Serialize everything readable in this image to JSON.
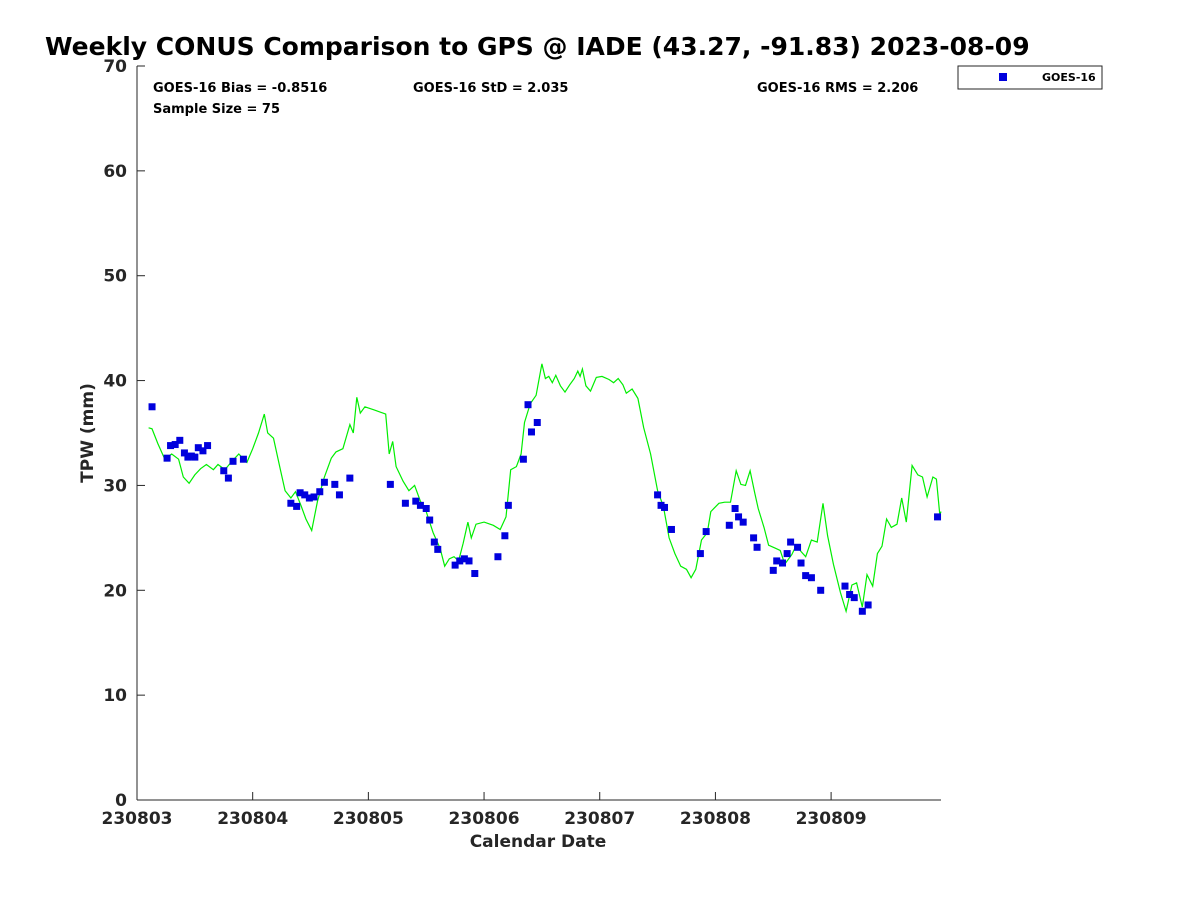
{
  "chart_data": {
    "type": "scatter",
    "title": "Weekly CONUS Comparison to GPS @ IADE (43.27, -91.83) 2023-08-09",
    "xlabel": "Calendar Date",
    "ylabel": "TPW (mm)",
    "xlim": [
      230803.0,
      230809.95
    ],
    "ylim": [
      0,
      70
    ],
    "yticks": [
      0,
      10,
      20,
      30,
      40,
      50,
      60,
      70
    ],
    "xticks": [
      {
        "value": 230803,
        "label": "230803"
      },
      {
        "value": 230804,
        "label": "230804"
      },
      {
        "value": 230805,
        "label": "230805"
      },
      {
        "value": 230806,
        "label": "230806"
      },
      {
        "value": 230807,
        "label": "230807"
      },
      {
        "value": 230808,
        "label": "230808"
      },
      {
        "value": 230809,
        "label": "230809"
      }
    ],
    "grid": false,
    "legend_position": "top-right outside",
    "stats": {
      "bias": "GOES-16 Bias = -0.8516",
      "std": "GOES-16 StD = 2.035",
      "rms": "GOES-16 RMS = 2.206",
      "sample": "Sample Size = 75"
    },
    "series": [
      {
        "name": "GOES-16",
        "kind": "scatter",
        "marker": "square",
        "color": "#0000dd",
        "points": [
          [
            230803.13,
            37.5
          ],
          [
            230803.26,
            32.6
          ],
          [
            230803.29,
            33.8
          ],
          [
            230803.33,
            33.9
          ],
          [
            230803.37,
            34.3
          ],
          [
            230803.41,
            33.1
          ],
          [
            230803.44,
            32.7
          ],
          [
            230803.47,
            32.8
          ],
          [
            230803.5,
            32.7
          ],
          [
            230803.53,
            33.6
          ],
          [
            230803.57,
            33.3
          ],
          [
            230803.61,
            33.8
          ],
          [
            230803.75,
            31.4
          ],
          [
            230803.79,
            30.7
          ],
          [
            230803.83,
            32.3
          ],
          [
            230803.92,
            32.5
          ],
          [
            230804.33,
            28.3
          ],
          [
            230804.38,
            28.0
          ],
          [
            230804.41,
            29.3
          ],
          [
            230804.45,
            29.1
          ],
          [
            230804.49,
            28.8
          ],
          [
            230804.53,
            28.9
          ],
          [
            230804.58,
            29.4
          ],
          [
            230804.62,
            30.3
          ],
          [
            230804.71,
            30.1
          ],
          [
            230804.75,
            29.1
          ],
          [
            230804.84,
            30.7
          ],
          [
            230805.19,
            30.1
          ],
          [
            230805.32,
            28.3
          ],
          [
            230805.41,
            28.5
          ],
          [
            230805.45,
            28.1
          ],
          [
            230805.5,
            27.8
          ],
          [
            230805.53,
            26.7
          ],
          [
            230805.57,
            24.6
          ],
          [
            230805.6,
            23.9
          ],
          [
            230805.75,
            22.4
          ],
          [
            230805.79,
            22.8
          ],
          [
            230805.83,
            23.0
          ],
          [
            230805.87,
            22.8
          ],
          [
            230805.92,
            21.6
          ],
          [
            230806.12,
            23.2
          ],
          [
            230806.18,
            25.2
          ],
          [
            230806.21,
            28.1
          ],
          [
            230806.34,
            32.5
          ],
          [
            230806.38,
            37.7
          ],
          [
            230806.41,
            35.1
          ],
          [
            230806.46,
            36.0
          ],
          [
            230807.5,
            29.1
          ],
          [
            230807.53,
            28.1
          ],
          [
            230807.56,
            27.9
          ],
          [
            230807.62,
            25.8
          ],
          [
            230807.87,
            23.5
          ],
          [
            230807.92,
            25.6
          ],
          [
            230808.12,
            26.2
          ],
          [
            230808.17,
            27.8
          ],
          [
            230808.2,
            27.0
          ],
          [
            230808.24,
            26.5
          ],
          [
            230808.33,
            25.0
          ],
          [
            230808.36,
            24.1
          ],
          [
            230808.5,
            21.9
          ],
          [
            230808.53,
            22.8
          ],
          [
            230808.58,
            22.6
          ],
          [
            230808.62,
            23.5
          ],
          [
            230808.65,
            24.6
          ],
          [
            230808.71,
            24.1
          ],
          [
            230808.74,
            22.6
          ],
          [
            230808.78,
            21.4
          ],
          [
            230808.83,
            21.2
          ],
          [
            230808.91,
            20.0
          ],
          [
            230809.12,
            20.4
          ],
          [
            230809.16,
            19.6
          ],
          [
            230809.2,
            19.3
          ],
          [
            230809.27,
            18.0
          ],
          [
            230809.32,
            18.6
          ],
          [
            230809.92,
            27.0
          ]
        ]
      },
      {
        "kind": "line",
        "color": "#00ee00",
        "points": [
          [
            230803.1,
            35.5
          ],
          [
            230803.13,
            35.4
          ],
          [
            230803.18,
            34.0
          ],
          [
            230803.24,
            32.5
          ],
          [
            230803.3,
            33.0
          ],
          [
            230803.36,
            32.5
          ],
          [
            230803.4,
            30.8
          ],
          [
            230803.45,
            30.2
          ],
          [
            230803.5,
            31.0
          ],
          [
            230803.55,
            31.6
          ],
          [
            230803.6,
            32.0
          ],
          [
            230803.66,
            31.5
          ],
          [
            230803.7,
            32.0
          ],
          [
            230803.76,
            31.5
          ],
          [
            230803.82,
            32.3
          ],
          [
            230803.88,
            33.0
          ],
          [
            230803.95,
            32.2
          ],
          [
            230804.0,
            33.5
          ],
          [
            230804.05,
            35.0
          ],
          [
            230804.1,
            36.8
          ],
          [
            230804.13,
            35.0
          ],
          [
            230804.18,
            34.5
          ],
          [
            230804.24,
            31.5
          ],
          [
            230804.28,
            29.5
          ],
          [
            230804.33,
            28.8
          ],
          [
            230804.37,
            29.4
          ],
          [
            230804.42,
            28.0
          ],
          [
            230804.46,
            26.8
          ],
          [
            230804.51,
            25.7
          ],
          [
            230804.56,
            28.5
          ],
          [
            230804.62,
            30.8
          ],
          [
            230804.68,
            32.6
          ],
          [
            230804.72,
            33.2
          ],
          [
            230804.78,
            33.5
          ],
          [
            230804.84,
            35.8
          ],
          [
            230804.87,
            35.0
          ],
          [
            230804.9,
            38.4
          ],
          [
            230804.93,
            36.9
          ],
          [
            230804.97,
            37.5
          ],
          [
            230805.05,
            37.2
          ],
          [
            230805.15,
            36.8
          ],
          [
            230805.18,
            33.0
          ],
          [
            230805.21,
            34.2
          ],
          [
            230805.24,
            31.8
          ],
          [
            230805.3,
            30.4
          ],
          [
            230805.35,
            29.5
          ],
          [
            230805.4,
            30.0
          ],
          [
            230805.45,
            28.5
          ],
          [
            230805.5,
            27.5
          ],
          [
            230805.56,
            25.5
          ],
          [
            230805.62,
            24.0
          ],
          [
            230805.66,
            22.3
          ],
          [
            230805.7,
            23.0
          ],
          [
            230805.74,
            23.2
          ],
          [
            230805.78,
            22.8
          ],
          [
            230805.82,
            24.5
          ],
          [
            230805.86,
            26.5
          ],
          [
            230805.89,
            25.0
          ],
          [
            230805.93,
            26.3
          ],
          [
            230806.0,
            26.5
          ],
          [
            230806.08,
            26.2
          ],
          [
            230806.14,
            25.8
          ],
          [
            230806.19,
            27.0
          ],
          [
            230806.23,
            31.5
          ],
          [
            230806.28,
            31.8
          ],
          [
            230806.32,
            33.0
          ],
          [
            230806.35,
            36.0
          ],
          [
            230806.4,
            37.8
          ],
          [
            230806.45,
            38.6
          ],
          [
            230806.5,
            41.6
          ],
          [
            230806.53,
            40.2
          ],
          [
            230806.56,
            40.4
          ],
          [
            230806.59,
            39.8
          ],
          [
            230806.62,
            40.5
          ],
          [
            230806.66,
            39.5
          ],
          [
            230806.7,
            38.9
          ],
          [
            230806.74,
            39.6
          ],
          [
            230806.78,
            40.2
          ],
          [
            230806.81,
            40.9
          ],
          [
            230806.83,
            40.4
          ],
          [
            230806.85,
            41.1
          ],
          [
            230806.88,
            39.5
          ],
          [
            230806.92,
            39.0
          ],
          [
            230806.97,
            40.3
          ],
          [
            230807.02,
            40.4
          ],
          [
            230807.08,
            40.1
          ],
          [
            230807.12,
            39.8
          ],
          [
            230807.16,
            40.2
          ],
          [
            230807.2,
            39.6
          ],
          [
            230807.23,
            38.8
          ],
          [
            230807.28,
            39.2
          ],
          [
            230807.33,
            38.3
          ],
          [
            230807.38,
            35.5
          ],
          [
            230807.44,
            33.0
          ],
          [
            230807.5,
            29.5
          ],
          [
            230807.55,
            28.0
          ],
          [
            230807.6,
            25.0
          ],
          [
            230807.65,
            23.5
          ],
          [
            230807.7,
            22.3
          ],
          [
            230807.75,
            22.0
          ],
          [
            230807.79,
            21.2
          ],
          [
            230807.83,
            22.0
          ],
          [
            230807.88,
            24.8
          ],
          [
            230807.93,
            25.5
          ],
          [
            230807.96,
            27.5
          ],
          [
            230808.03,
            28.3
          ],
          [
            230808.08,
            28.4
          ],
          [
            230808.13,
            28.4
          ],
          [
            230808.18,
            31.4
          ],
          [
            230808.22,
            30.1
          ],
          [
            230808.26,
            30.0
          ],
          [
            230808.3,
            31.4
          ],
          [
            230808.34,
            29.3
          ],
          [
            230808.37,
            27.8
          ],
          [
            230808.42,
            26.0
          ],
          [
            230808.46,
            24.3
          ],
          [
            230808.52,
            24.0
          ],
          [
            230808.56,
            23.8
          ],
          [
            230808.6,
            22.5
          ],
          [
            230808.66,
            23.4
          ],
          [
            230808.7,
            24.3
          ],
          [
            230808.74,
            23.7
          ],
          [
            230808.78,
            23.2
          ],
          [
            230808.83,
            24.8
          ],
          [
            230808.88,
            24.6
          ],
          [
            230808.93,
            28.3
          ],
          [
            230808.97,
            25.2
          ],
          [
            230809.02,
            22.5
          ],
          [
            230809.08,
            19.8
          ],
          [
            230809.13,
            18.0
          ],
          [
            230809.18,
            20.5
          ],
          [
            230809.22,
            20.7
          ],
          [
            230809.27,
            18.4
          ],
          [
            230809.31,
            21.5
          ],
          [
            230809.36,
            20.4
          ],
          [
            230809.4,
            23.5
          ],
          [
            230809.44,
            24.2
          ],
          [
            230809.48,
            26.8
          ],
          [
            230809.52,
            26.0
          ],
          [
            230809.57,
            26.3
          ],
          [
            230809.61,
            28.8
          ],
          [
            230809.65,
            26.5
          ],
          [
            230809.7,
            31.9
          ],
          [
            230809.75,
            31.0
          ],
          [
            230809.79,
            30.8
          ],
          [
            230809.83,
            28.9
          ],
          [
            230809.88,
            30.8
          ],
          [
            230809.91,
            30.6
          ],
          [
            230809.94,
            27.2
          ],
          [
            230809.95,
            27.5
          ]
        ]
      }
    ]
  }
}
